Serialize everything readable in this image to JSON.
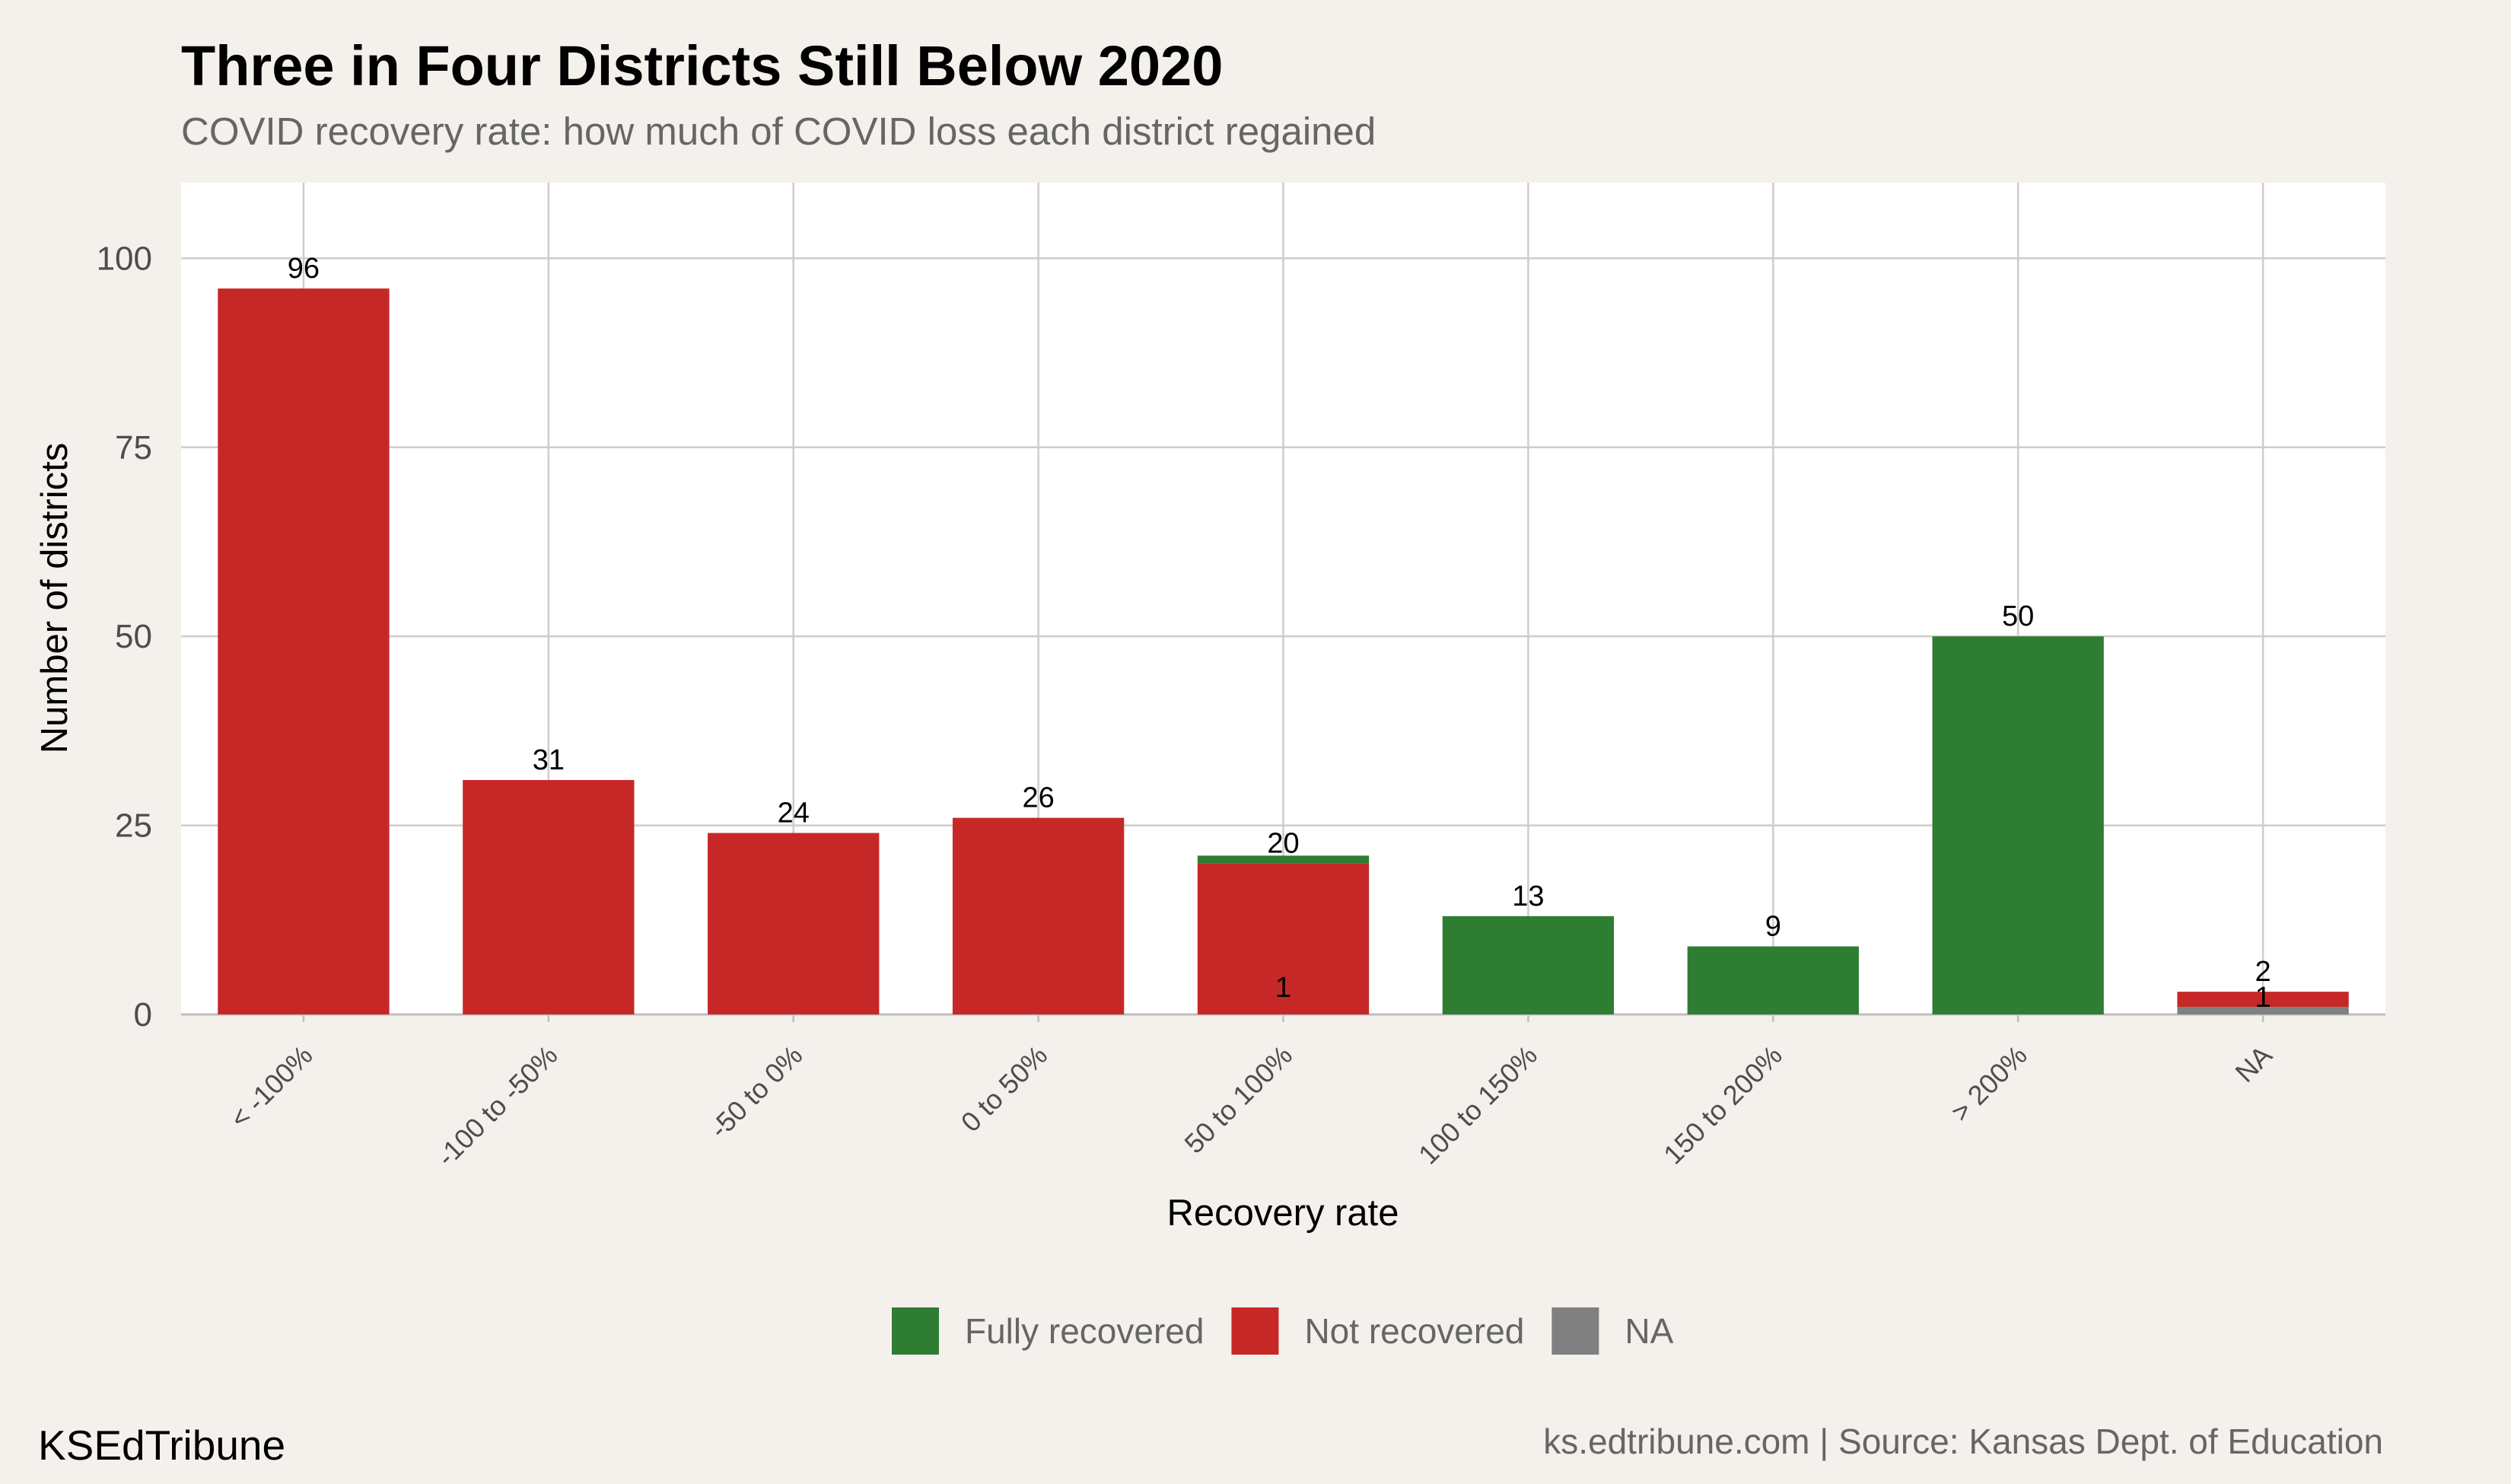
{
  "header": {
    "title": "Three in Four Districts Still Below 2020",
    "subtitle": "COVID recovery rate: how much of COVID loss each district regained"
  },
  "footer": {
    "brand": "KSEdTribune",
    "source": "ks.edtribune.com | Source: Kansas Dept. of Education"
  },
  "chart_data": {
    "type": "bar",
    "stacked": true,
    "title": "Three in Four Districts Still Below 2020",
    "subtitle": "COVID recovery rate: how much of COVID loss each district regained",
    "xlabel": "Recovery rate",
    "ylabel": "Number of districts",
    "ylim": [
      0,
      110
    ],
    "yticks": [
      0,
      25,
      50,
      75,
      100
    ],
    "grid": true,
    "legend_position": "bottom",
    "categories": [
      "< -100%",
      "-100 to -50%",
      "-50 to 0%",
      "0 to 50%",
      "50 to 100%",
      "100 to 150%",
      "150 to 200%",
      "> 200%",
      "NA"
    ],
    "series": [
      {
        "name": "NA",
        "color": "#808080",
        "values": [
          0,
          0,
          0,
          0,
          0,
          0,
          0,
          0,
          1
        ]
      },
      {
        "name": "Not recovered",
        "color": "#c62828",
        "values": [
          96,
          31,
          24,
          26,
          20,
          0,
          0,
          0,
          2
        ]
      },
      {
        "name": "Fully recovered",
        "color": "#2e7d32",
        "values": [
          0,
          0,
          0,
          0,
          1,
          13,
          9,
          50,
          0
        ]
      }
    ],
    "legend": [
      {
        "name": "Fully recovered",
        "color": "#2e7d32"
      },
      {
        "name": "Not recovered",
        "color": "#c62828"
      },
      {
        "name": "NA",
        "color": "#808080"
      }
    ]
  }
}
